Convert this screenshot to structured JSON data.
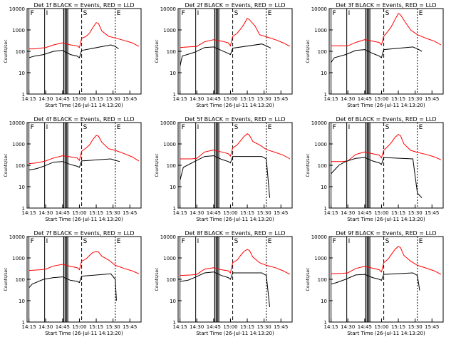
{
  "chart_data": {
    "type": "line",
    "xlabel": "Start Time (26-Jul-11 14:13:20)",
    "ylabel": "Counts/sec",
    "x_tick_labels": [
      "14:15",
      "14:30",
      "14:45",
      "15:00",
      "15:15",
      "15:30",
      "15:45"
    ],
    "x_tick_minutes": [
      15,
      30,
      45,
      60,
      75,
      90,
      105
    ],
    "xlim_minutes": [
      13.33,
      115
    ],
    "y_tick_labels": [
      "1",
      "10",
      "100",
      "1000",
      "10000"
    ],
    "y_tick_values": [
      1,
      10,
      100,
      1000,
      10000
    ],
    "ylim": [
      1,
      10000
    ],
    "y_scale": "log",
    "markers": {
      "F": 15,
      "I": 29,
      "S": 62,
      "E": 92
    },
    "colors": {
      "events": "#000000",
      "lld": "#ff0000"
    },
    "panels": [
      {
        "title": "Det 1f BLACK = Events, RED = LLD",
        "lld": [
          [
            15,
            130
          ],
          [
            20,
            130
          ],
          [
            30,
            150
          ],
          [
            37,
            200
          ],
          [
            45,
            250
          ],
          [
            52,
            200
          ],
          [
            58,
            180
          ],
          [
            60,
            150
          ],
          [
            62,
            400
          ],
          [
            66,
            500
          ],
          [
            69,
            700
          ],
          [
            72,
            1300
          ],
          [
            75,
            2200
          ],
          [
            77,
            2000
          ],
          [
            80,
            900
          ],
          [
            86,
            500
          ],
          [
            92,
            420
          ],
          [
            100,
            320
          ],
          [
            107,
            250
          ],
          [
            113,
            170
          ]
        ],
        "events": [
          [
            15,
            50
          ],
          [
            20,
            60
          ],
          [
            28,
            70
          ],
          [
            37,
            100
          ],
          [
            45,
            110
          ],
          [
            52,
            70
          ],
          [
            58,
            60
          ],
          [
            60,
            50
          ],
          [
            62,
            110
          ],
          [
            88,
            200
          ],
          [
            92,
            170
          ],
          [
            95,
            130
          ]
        ]
      },
      {
        "title": "Det 2f BLACK = Events, RED = LLD",
        "lld": [
          [
            15,
            150
          ],
          [
            22,
            160
          ],
          [
            30,
            170
          ],
          [
            37,
            280
          ],
          [
            45,
            350
          ],
          [
            52,
            300
          ],
          [
            58,
            250
          ],
          [
            60,
            180
          ],
          [
            62,
            500
          ],
          [
            66,
            700
          ],
          [
            69,
            1100
          ],
          [
            72,
            1800
          ],
          [
            75,
            3500
          ],
          [
            77,
            3000
          ],
          [
            82,
            1500
          ],
          [
            86,
            600
          ],
          [
            92,
            480
          ],
          [
            100,
            350
          ],
          [
            107,
            250
          ],
          [
            113,
            170
          ]
        ],
        "events": [
          [
            15,
            20
          ],
          [
            17,
            60
          ],
          [
            28,
            90
          ],
          [
            37,
            150
          ],
          [
            45,
            160
          ],
          [
            52,
            110
          ],
          [
            58,
            80
          ],
          [
            60,
            70
          ],
          [
            62,
            140
          ],
          [
            88,
            220
          ],
          [
            92,
            180
          ],
          [
            96,
            140
          ]
        ]
      },
      {
        "title": "Det 3f BLACK = Events, RED = LLD",
        "lld": [
          [
            15,
            180
          ],
          [
            25,
            180
          ],
          [
            30,
            180
          ],
          [
            37,
            260
          ],
          [
            45,
            350
          ],
          [
            52,
            300
          ],
          [
            58,
            260
          ],
          [
            60,
            200
          ],
          [
            62,
            500
          ],
          [
            66,
            900
          ],
          [
            69,
            1500
          ],
          [
            72,
            3000
          ],
          [
            75,
            6000
          ],
          [
            77,
            5000
          ],
          [
            82,
            2000
          ],
          [
            86,
            1000
          ],
          [
            92,
            600
          ],
          [
            100,
            400
          ],
          [
            107,
            300
          ],
          [
            113,
            200
          ]
        ],
        "events": [
          [
            15,
            30
          ],
          [
            18,
            50
          ],
          [
            28,
            70
          ],
          [
            37,
            110
          ],
          [
            45,
            120
          ],
          [
            52,
            80
          ],
          [
            58,
            60
          ],
          [
            60,
            50
          ],
          [
            62,
            120
          ],
          [
            88,
            160
          ],
          [
            92,
            130
          ],
          [
            96,
            100
          ]
        ]
      },
      {
        "title": "Det 4f BLACK = Events, RED = LLD",
        "lld": [
          [
            15,
            120
          ],
          [
            22,
            130
          ],
          [
            30,
            160
          ],
          [
            37,
            220
          ],
          [
            45,
            280
          ],
          [
            52,
            250
          ],
          [
            58,
            220
          ],
          [
            60,
            170
          ],
          [
            62,
            450
          ],
          [
            66,
            650
          ],
          [
            69,
            900
          ],
          [
            72,
            1600
          ],
          [
            75,
            2500
          ],
          [
            77,
            2300
          ],
          [
            80,
            1200
          ],
          [
            86,
            600
          ],
          [
            92,
            500
          ],
          [
            100,
            350
          ],
          [
            107,
            250
          ],
          [
            113,
            160
          ]
        ],
        "events": [
          [
            15,
            60
          ],
          [
            22,
            70
          ],
          [
            28,
            90
          ],
          [
            37,
            140
          ],
          [
            45,
            150
          ],
          [
            52,
            110
          ],
          [
            58,
            90
          ],
          [
            60,
            80
          ],
          [
            62,
            160
          ],
          [
            88,
            200
          ],
          [
            92,
            170
          ],
          [
            96,
            150
          ]
        ]
      },
      {
        "title": "Det 5f BLACK = Events, RED = LLD",
        "lld": [
          [
            15,
            200
          ],
          [
            25,
            200
          ],
          [
            30,
            210
          ],
          [
            37,
            420
          ],
          [
            45,
            520
          ],
          [
            52,
            420
          ],
          [
            58,
            350
          ],
          [
            60,
            270
          ],
          [
            62,
            650
          ],
          [
            66,
            900
          ],
          [
            69,
            1400
          ],
          [
            72,
            2200
          ],
          [
            75,
            3000
          ],
          [
            77,
            2500
          ],
          [
            80,
            1300
          ],
          [
            86,
            900
          ],
          [
            92,
            550
          ],
          [
            100,
            400
          ],
          [
            107,
            300
          ],
          [
            113,
            200
          ]
        ],
        "events": [
          [
            15,
            20
          ],
          [
            18,
            80
          ],
          [
            28,
            150
          ],
          [
            37,
            260
          ],
          [
            45,
            280
          ],
          [
            52,
            190
          ],
          [
            58,
            150
          ],
          [
            60,
            130
          ],
          [
            62,
            260
          ],
          [
            88,
            260
          ],
          [
            92,
            200
          ],
          [
            95,
            3
          ]
        ]
      },
      {
        "title": "Det 6f BLACK = Events, RED = LLD",
        "lld": [
          [
            15,
            150
          ],
          [
            25,
            150
          ],
          [
            30,
            160
          ],
          [
            37,
            320
          ],
          [
            45,
            420
          ],
          [
            52,
            350
          ],
          [
            58,
            300
          ],
          [
            60,
            220
          ],
          [
            62,
            500
          ],
          [
            66,
            800
          ],
          [
            69,
            1200
          ],
          [
            72,
            2000
          ],
          [
            75,
            2800
          ],
          [
            77,
            2400
          ],
          [
            80,
            1000
          ],
          [
            86,
            500
          ],
          [
            92,
            400
          ],
          [
            100,
            320
          ],
          [
            107,
            250
          ],
          [
            113,
            180
          ]
        ],
        "events": [
          [
            15,
            40
          ],
          [
            22,
            100
          ],
          [
            28,
            150
          ],
          [
            37,
            210
          ],
          [
            45,
            230
          ],
          [
            52,
            160
          ],
          [
            58,
            130
          ],
          [
            60,
            110
          ],
          [
            62,
            230
          ],
          [
            88,
            200
          ],
          [
            92,
            5
          ],
          [
            96,
            3
          ]
        ]
      },
      {
        "title": "Det 7f BLACK = Events, RED = LLD",
        "lld": [
          [
            15,
            260
          ],
          [
            25,
            280
          ],
          [
            30,
            300
          ],
          [
            37,
            420
          ],
          [
            45,
            500
          ],
          [
            52,
            400
          ],
          [
            58,
            350
          ],
          [
            60,
            280
          ],
          [
            62,
            700
          ],
          [
            66,
            900
          ],
          [
            69,
            1300
          ],
          [
            72,
            1800
          ],
          [
            75,
            2000
          ],
          [
            77,
            1900
          ],
          [
            80,
            1200
          ],
          [
            86,
            800
          ],
          [
            92,
            450
          ],
          [
            100,
            320
          ],
          [
            107,
            250
          ],
          [
            113,
            180
          ]
        ],
        "events": [
          [
            15,
            40
          ],
          [
            18,
            60
          ],
          [
            28,
            100
          ],
          [
            37,
            120
          ],
          [
            45,
            130
          ],
          [
            52,
            90
          ],
          [
            58,
            80
          ],
          [
            60,
            70
          ],
          [
            62,
            140
          ],
          [
            88,
            180
          ],
          [
            92,
            100
          ],
          [
            93,
            10
          ]
        ]
      },
      {
        "title": "Det 8f BLACK = Events, RED = LLD",
        "lld": [
          [
            15,
            150
          ],
          [
            25,
            160
          ],
          [
            30,
            170
          ],
          [
            37,
            300
          ],
          [
            45,
            350
          ],
          [
            52,
            280
          ],
          [
            58,
            250
          ],
          [
            60,
            200
          ],
          [
            62,
            600
          ],
          [
            66,
            800
          ],
          [
            69,
            1300
          ],
          [
            72,
            2000
          ],
          [
            75,
            2500
          ],
          [
            77,
            2200
          ],
          [
            80,
            1100
          ],
          [
            86,
            600
          ],
          [
            92,
            450
          ],
          [
            100,
            350
          ],
          [
            107,
            250
          ],
          [
            113,
            170
          ]
        ],
        "events": [
          [
            15,
            80
          ],
          [
            22,
            90
          ],
          [
            28,
            120
          ],
          [
            37,
            200
          ],
          [
            45,
            220
          ],
          [
            52,
            150
          ],
          [
            58,
            120
          ],
          [
            60,
            100
          ],
          [
            62,
            200
          ],
          [
            88,
            200
          ],
          [
            92,
            150
          ],
          [
            95,
            5
          ]
        ]
      },
      {
        "title": "Det 9f BLACK = Events, RED = LLD",
        "lld": [
          [
            15,
            180
          ],
          [
            25,
            190
          ],
          [
            30,
            200
          ],
          [
            37,
            320
          ],
          [
            45,
            400
          ],
          [
            52,
            330
          ],
          [
            58,
            280
          ],
          [
            60,
            220
          ],
          [
            62,
            600
          ],
          [
            66,
            900
          ],
          [
            69,
            1500
          ],
          [
            72,
            2500
          ],
          [
            75,
            3500
          ],
          [
            77,
            3000
          ],
          [
            80,
            1300
          ],
          [
            86,
            700
          ],
          [
            92,
            450
          ],
          [
            100,
            330
          ],
          [
            107,
            250
          ],
          [
            113,
            170
          ]
        ],
        "events": [
          [
            15,
            60
          ],
          [
            20,
            70
          ],
          [
            28,
            100
          ],
          [
            37,
            160
          ],
          [
            45,
            170
          ],
          [
            52,
            120
          ],
          [
            58,
            100
          ],
          [
            60,
            90
          ],
          [
            62,
            170
          ],
          [
            88,
            200
          ],
          [
            92,
            150
          ],
          [
            94,
            30
          ]
        ]
      }
    ]
  }
}
